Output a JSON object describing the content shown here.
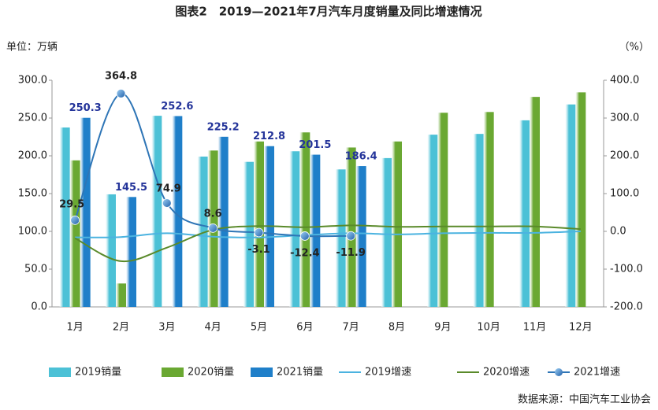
{
  "chart_data": {
    "type": "bar",
    "title": "图表2　2019—2021年7月汽车月度销量及同比增速情况",
    "y_axis_label": "单位：万辆",
    "y2_axis_label": "（%）",
    "source": "数据来源：中国汽车工业协会",
    "categories": [
      "1月",
      "2月",
      "3月",
      "4月",
      "5月",
      "6月",
      "7月",
      "8月",
      "9月",
      "10月",
      "11月",
      "12月"
    ],
    "ylim": [
      0,
      300
    ],
    "yticks": [
      {
        "value": 0,
        "label": "0.0"
      },
      {
        "value": 50,
        "label": "50.0"
      },
      {
        "value": 100,
        "label": "100.0"
      },
      {
        "value": 150,
        "label": "150.0"
      },
      {
        "value": 200,
        "label": "200.0"
      },
      {
        "value": 250,
        "label": "250.0"
      },
      {
        "value": 300,
        "label": "300.0"
      }
    ],
    "y2lim": [
      -200,
      400
    ],
    "y2ticks": [
      {
        "value": -200,
        "label": "-200.0"
      },
      {
        "value": -100,
        "label": "-100.0"
      },
      {
        "value": 0,
        "label": "0.0"
      },
      {
        "value": 100,
        "label": "100.0"
      },
      {
        "value": 200,
        "label": "200.0"
      },
      {
        "value": 300,
        "label": "300.0"
      },
      {
        "value": 400,
        "label": "400.0"
      }
    ],
    "series": [
      {
        "name": "2019销量",
        "type": "bar",
        "color": "#4cc1d6",
        "values": [
          237.5,
          149,
          253,
          199,
          192,
          206,
          182,
          197,
          228,
          229,
          247,
          268
        ]
      },
      {
        "name": "2020销量",
        "type": "bar",
        "color": "#6aa832",
        "values": [
          194,
          31,
          null,
          207,
          219,
          231,
          211,
          219,
          257,
          258,
          278,
          284
        ]
      },
      {
        "name": "2021销量",
        "type": "bar",
        "color": "#1f7fc9",
        "values": [
          250.3,
          145.5,
          252.6,
          225.2,
          212.8,
          201.5,
          186.4,
          null,
          null,
          null,
          null,
          null
        ],
        "labeled": true
      },
      {
        "name": "2019增速",
        "type": "line",
        "axis": "y2",
        "color": "#4bb3e0",
        "values": [
          -16,
          -15,
          -5,
          -14,
          -16,
          -10,
          -5,
          -8,
          -5,
          -4,
          -4,
          0
        ]
      },
      {
        "name": "2020增速",
        "type": "line",
        "axis": "y2",
        "color": "#5a8a2a",
        "values": [
          -18,
          -79,
          -43,
          4,
          14,
          11,
          16,
          12,
          13,
          13,
          13,
          6
        ]
      },
      {
        "name": "2021增速",
        "type": "line",
        "axis": "y2",
        "color": "#2e75b6",
        "markers": true,
        "labeled": true,
        "values": [
          29.5,
          364.8,
          74.9,
          8.6,
          -3.1,
          -12.4,
          -11.9,
          null,
          null,
          null,
          null,
          null
        ]
      }
    ]
  }
}
